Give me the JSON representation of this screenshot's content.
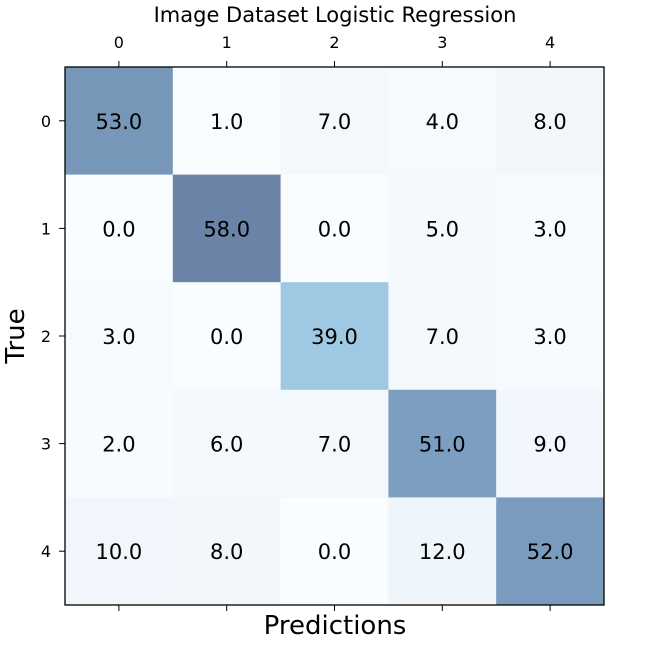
{
  "chart_data": {
    "type": "heatmap",
    "title": "Image Dataset Logistic Regression",
    "xlabel": "Predictions",
    "ylabel": "True",
    "x_tick_labels": [
      "0",
      "1",
      "2",
      "3",
      "4"
    ],
    "y_tick_labels": [
      "0",
      "1",
      "2",
      "3",
      "4"
    ],
    "x_ticks_position": "top",
    "grid": false,
    "values": [
      [
        53.0,
        1.0,
        7.0,
        4.0,
        8.0
      ],
      [
        0.0,
        58.0,
        0.0,
        5.0,
        3.0
      ],
      [
        3.0,
        0.0,
        39.0,
        7.0,
        3.0
      ],
      [
        2.0,
        6.0,
        7.0,
        51.0,
        9.0
      ],
      [
        10.0,
        8.0,
        0.0,
        12.0,
        52.0
      ]
    ],
    "cell_labels": [
      [
        "53.0",
        "1.0",
        "7.0",
        "4.0",
        "8.0"
      ],
      [
        "0.0",
        "58.0",
        "0.0",
        "5.0",
        "3.0"
      ],
      [
        "3.0",
        "0.0",
        "39.0",
        "7.0",
        "3.0"
      ],
      [
        "2.0",
        "6.0",
        "7.0",
        "51.0",
        "9.0"
      ],
      [
        "10.0",
        "8.0",
        "0.0",
        "12.0",
        "52.0"
      ]
    ],
    "colormap": "Blues",
    "value_range": [
      0,
      58
    ]
  }
}
